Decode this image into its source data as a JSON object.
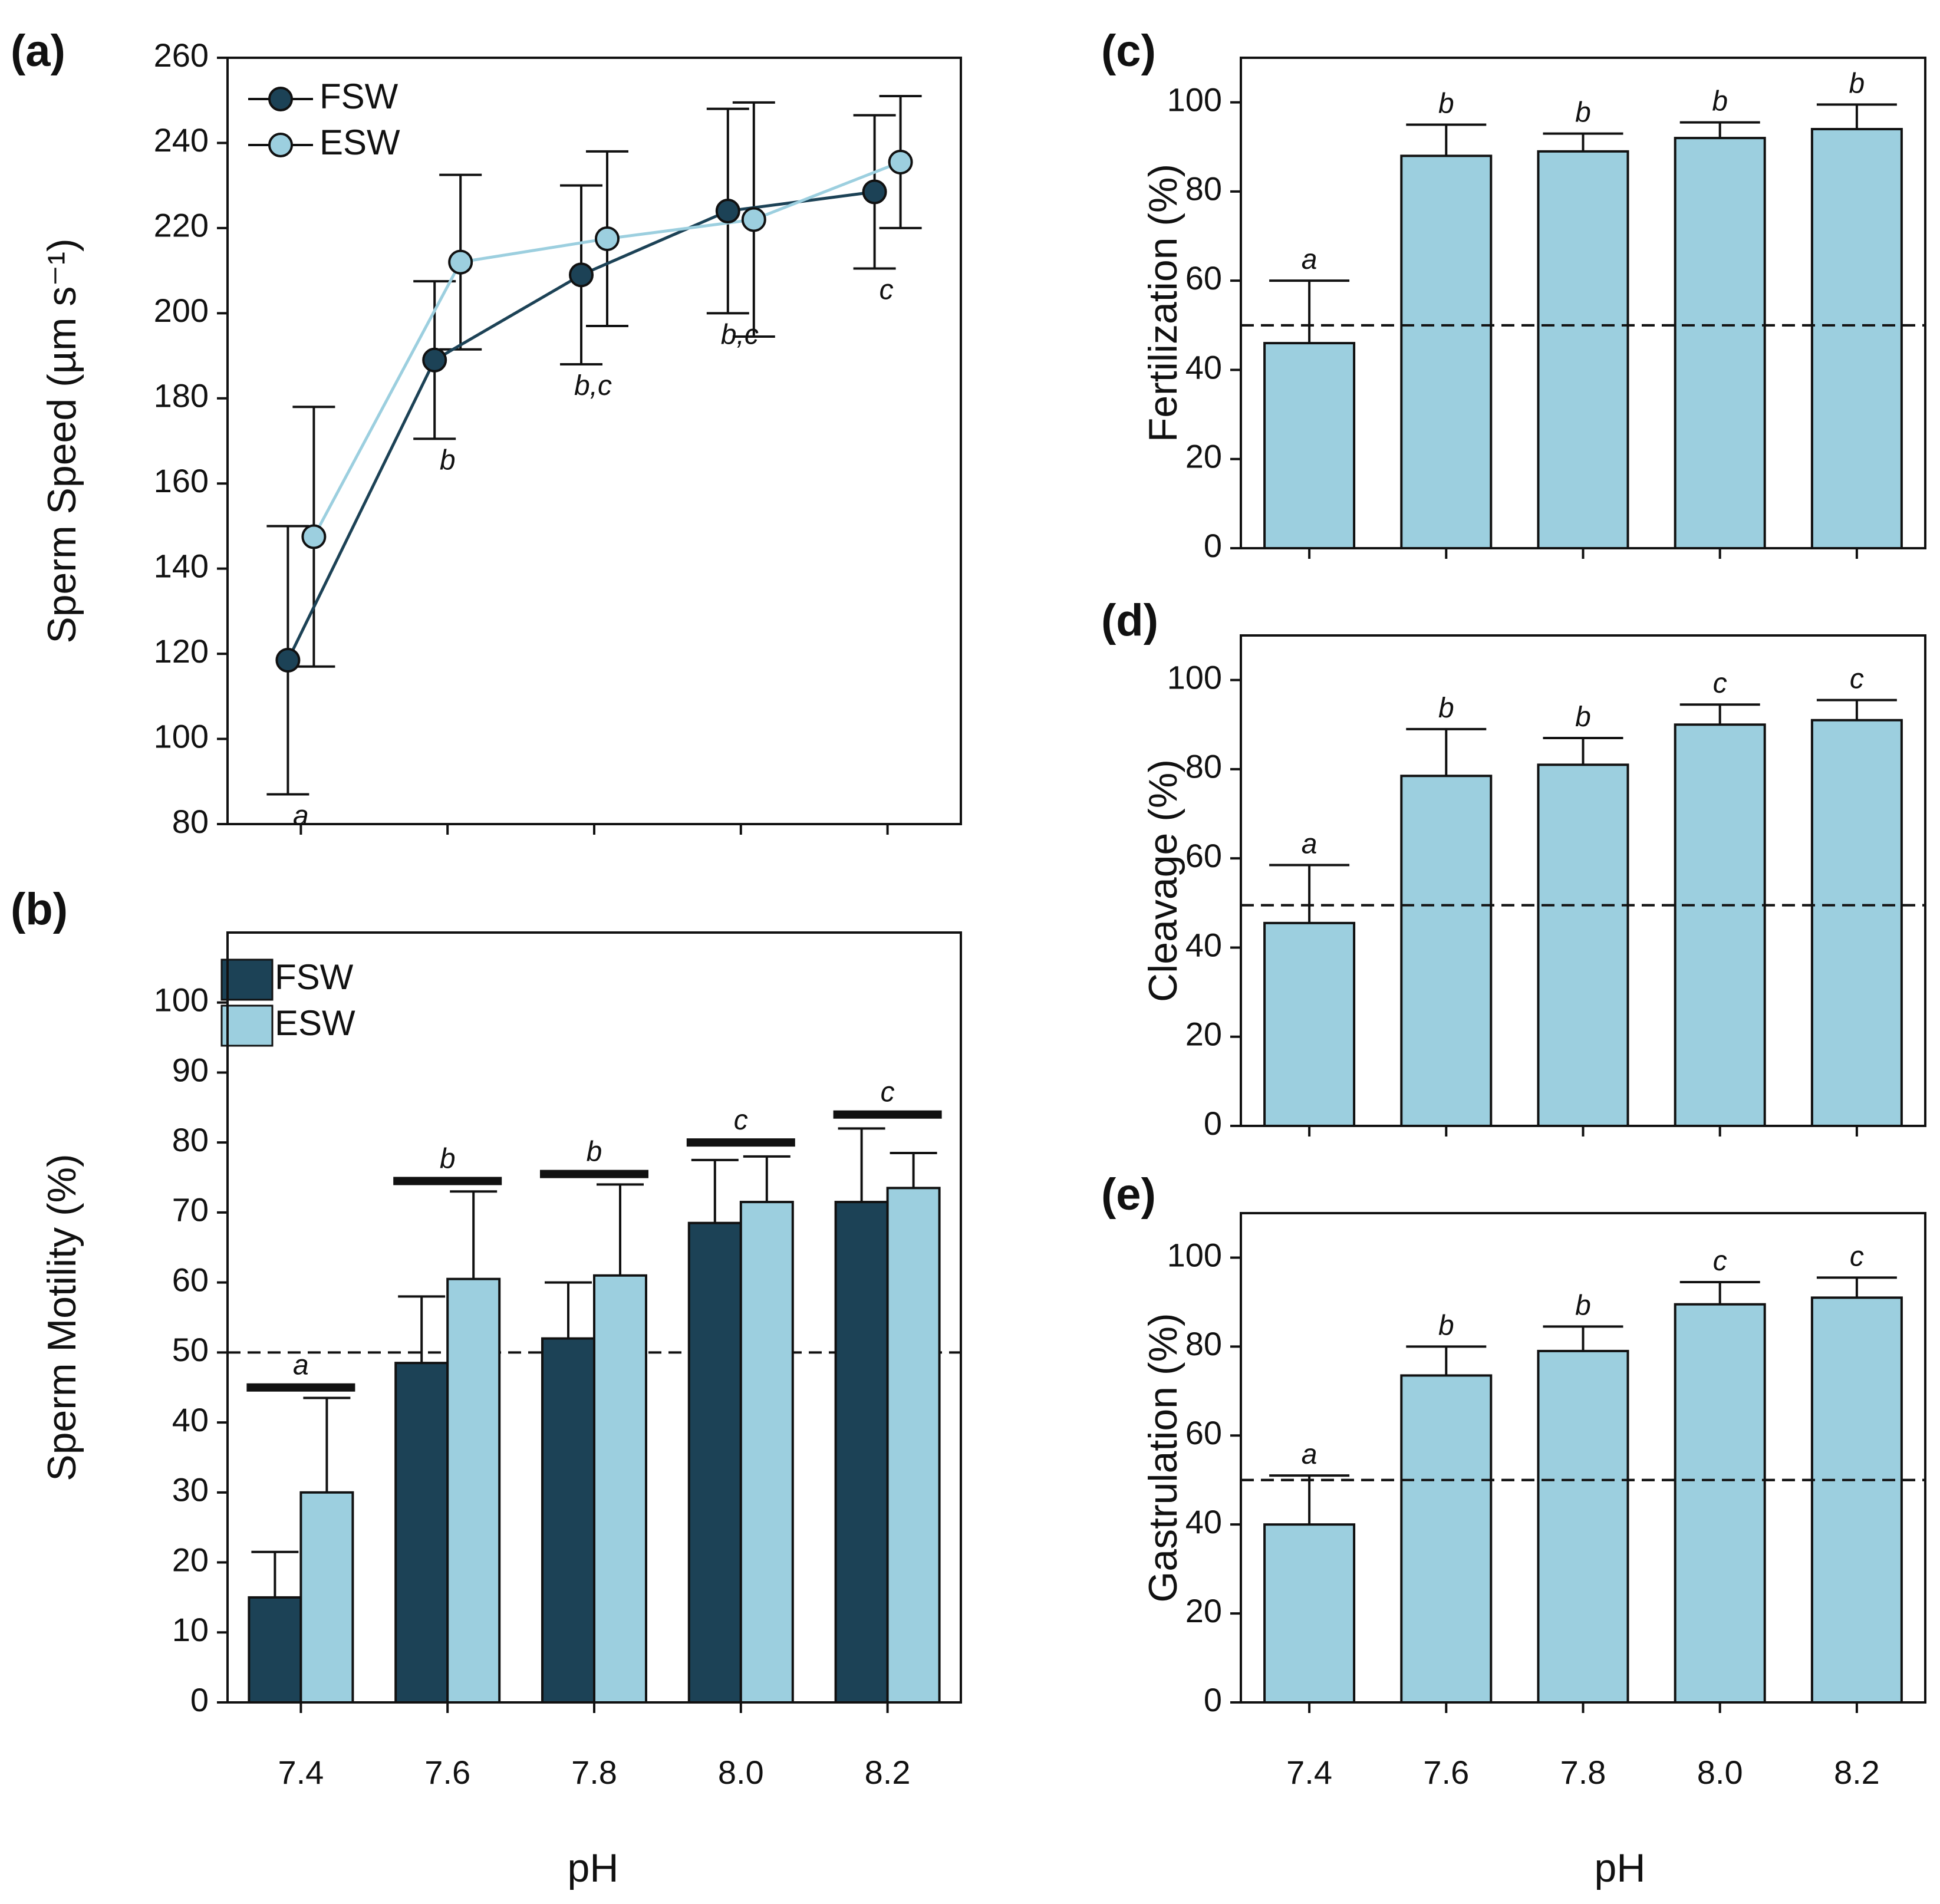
{
  "colors": {
    "fsw": "#1c4256",
    "esw": "#9ccfdf",
    "axis": "#111111",
    "background": "#ffffff"
  },
  "shared": {
    "xlabel": "pH",
    "ph_labels": [
      "7.4",
      "7.6",
      "7.8",
      "8.0",
      "8.2"
    ]
  },
  "chart_data": [
    {
      "id": "a",
      "panel_label": "(a)",
      "type": "line",
      "ylabel": "Sperm Speed (µm s⁻¹)",
      "ylim": [
        80,
        260
      ],
      "yticks": [
        80,
        100,
        120,
        140,
        160,
        180,
        200,
        220,
        240,
        260
      ],
      "categories": [
        "7.4",
        "7.6",
        "7.8",
        "8.0",
        "8.2"
      ],
      "show_x_tick_labels": false,
      "legend": {
        "position": "top-left",
        "entries": [
          "FSW",
          "ESW"
        ]
      },
      "series": [
        {
          "name": "FSW",
          "values": [
            118.5,
            189,
            209,
            224,
            228.5
          ],
          "err": [
            31.5,
            18.5,
            21,
            24,
            18
          ]
        },
        {
          "name": "ESW",
          "values": [
            147.5,
            212,
            217.5,
            222,
            235.5
          ],
          "err": [
            30.5,
            20.5,
            20.5,
            27.5,
            15.5
          ]
        }
      ],
      "significance": [
        "a",
        "b",
        "b,c",
        "b,c",
        "c"
      ]
    },
    {
      "id": "b",
      "panel_label": "(b)",
      "type": "bar",
      "ylabel": "Sperm Motility (%)",
      "ylim": [
        0,
        110
      ],
      "yticks": [
        0,
        10,
        20,
        30,
        40,
        50,
        60,
        70,
        80,
        90,
        100
      ],
      "categories": [
        "7.4",
        "7.6",
        "7.8",
        "8.0",
        "8.2"
      ],
      "show_x_tick_labels": true,
      "reference_line": 50,
      "legend": {
        "position": "top-left",
        "entries": [
          "FSW",
          "ESW"
        ]
      },
      "series": [
        {
          "name": "FSW",
          "values": [
            15,
            48.5,
            52,
            68.5,
            71.5
          ],
          "err": [
            6.5,
            9.5,
            8,
            9,
            10.5
          ]
        },
        {
          "name": "ESW",
          "values": [
            30,
            60.5,
            61,
            71.5,
            73.5
          ],
          "err": [
            13.5,
            12.5,
            13,
            6.5,
            5
          ]
        },
        {
          "name": "group_bar",
          "values": [
            45,
            74.5,
            75.5,
            80,
            84
          ]
        }
      ],
      "significance": [
        "a",
        "b",
        "b",
        "c",
        "c"
      ]
    },
    {
      "id": "c",
      "panel_label": "(c)",
      "type": "bar",
      "ylabel": "Fertilization (%)",
      "ylim": [
        0,
        110
      ],
      "yticks": [
        0,
        20,
        40,
        60,
        80,
        100
      ],
      "categories": [
        "7.4",
        "7.6",
        "7.8",
        "8.0",
        "8.2"
      ],
      "show_x_tick_labels": false,
      "reference_line": 50,
      "series": [
        {
          "name": "ESW",
          "values": [
            46,
            88,
            89,
            92,
            94
          ],
          "err": [
            14,
            7,
            4,
            3.5,
            5.5
          ]
        }
      ],
      "significance": [
        "a",
        "b",
        "b",
        "b",
        "b"
      ]
    },
    {
      "id": "d",
      "panel_label": "(d)",
      "type": "bar",
      "ylabel": "Cleavage (%)",
      "ylim": [
        0,
        110
      ],
      "yticks": [
        0,
        20,
        40,
        60,
        80,
        100
      ],
      "categories": [
        "7.4",
        "7.6",
        "7.8",
        "8.0",
        "8.2"
      ],
      "show_x_tick_labels": false,
      "reference_line": 49.5,
      "series": [
        {
          "name": "ESW",
          "values": [
            45.5,
            78.5,
            81,
            90,
            91
          ],
          "err": [
            13,
            10.5,
            6,
            4.5,
            4.5
          ]
        }
      ],
      "significance": [
        "a",
        "b",
        "b",
        "c",
        "c"
      ]
    },
    {
      "id": "e",
      "panel_label": "(e)",
      "type": "bar",
      "ylabel": "Gastrulation (%)",
      "ylim": [
        0,
        110
      ],
      "yticks": [
        0,
        20,
        40,
        60,
        80,
        100
      ],
      "categories": [
        "7.4",
        "7.6",
        "7.8",
        "8.0",
        "8.2"
      ],
      "show_x_tick_labels": true,
      "reference_line": 50,
      "series": [
        {
          "name": "ESW",
          "values": [
            40,
            73.5,
            79,
            89.5,
            91
          ],
          "err": [
            11,
            6.5,
            5.5,
            5,
            4.5
          ]
        }
      ],
      "significance": [
        "a",
        "b",
        "b",
        "c",
        "c"
      ]
    }
  ]
}
